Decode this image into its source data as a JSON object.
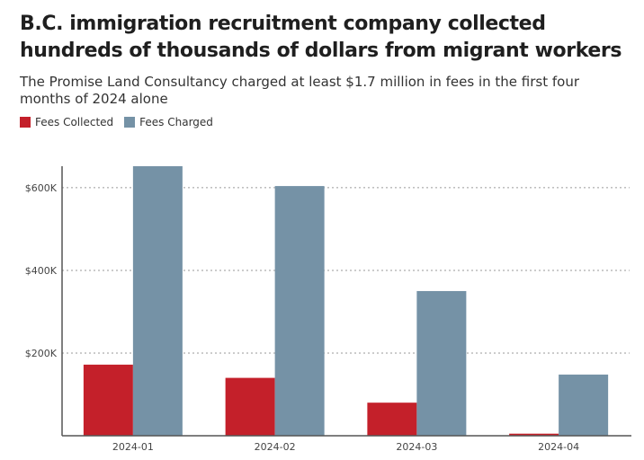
{
  "title": "B.C. immigration recruitment company collected hundreds of thousands of dollars from migrant workers",
  "subtitle": "The Promise Land Consultancy charged at least $1.7 million in fees in the first four months of 2024 alone",
  "colors": {
    "collected": "#c4202a",
    "charged": "#7592a6"
  },
  "chart_data": {
    "type": "bar",
    "categories": [
      "2024-01",
      "2024-02",
      "2024-03",
      "2024-04"
    ],
    "series": [
      {
        "name": "Fees Collected",
        "values": [
          172000,
          140000,
          80000,
          5000
        ]
      },
      {
        "name": "Fees Charged",
        "values": [
          652000,
          604000,
          350000,
          148000
        ]
      }
    ],
    "ylim": [
      0,
      652000
    ],
    "yticks": [
      200000,
      400000,
      600000
    ],
    "ytick_labels": [
      "$200K",
      "$400K",
      "$600K"
    ],
    "grid": true,
    "legend": "top-left"
  }
}
